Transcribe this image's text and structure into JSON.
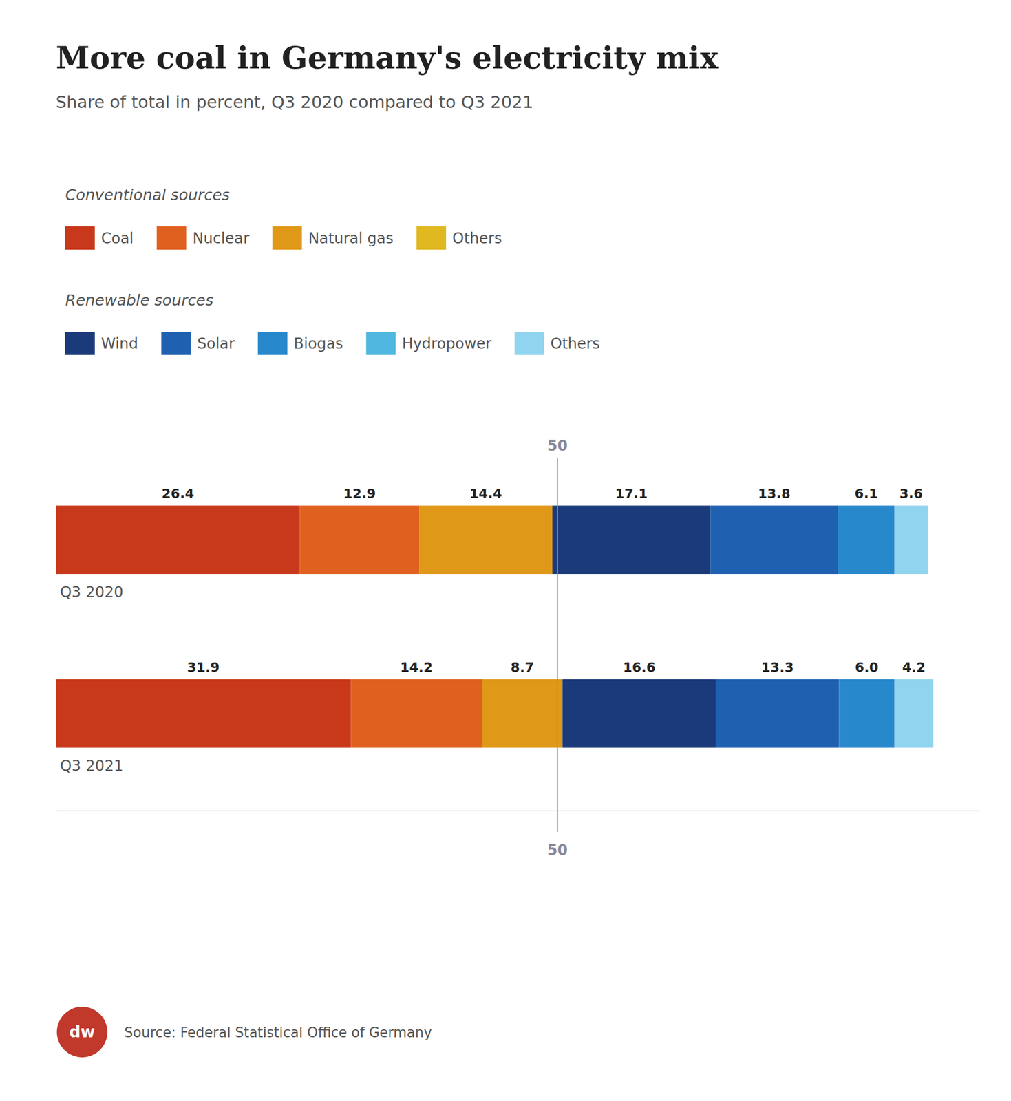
{
  "chart_data": {
    "type": "bar",
    "orientation": "horizontal",
    "stacked": true,
    "data_labels": true,
    "tick_labels": false,
    "grid": false,
    "title": "More coal in Germany's electricity mix",
    "subtitle": "Share of total in percent, Q3 2020 compared to Q3 2021",
    "categories": [
      "Q3 2020",
      "Q3 2021"
    ],
    "series": [
      {
        "name": "Coal",
        "group": "Conventional sources",
        "color": "#c8381a",
        "values": [
          26.4,
          31.9
        ]
      },
      {
        "name": "Nuclear",
        "group": "Conventional sources",
        "color": "#e06020",
        "values": [
          12.9,
          14.2
        ]
      },
      {
        "name": "Natural gas",
        "group": "Conventional sources",
        "color": "#e09818",
        "values": [
          14.4,
          8.7
        ]
      },
      {
        "name": "Others",
        "group": "Conventional sources",
        "color": "#e0b820",
        "values": [
          null,
          null
        ]
      },
      {
        "name": "Wind",
        "group": "Renewable sources",
        "color": "#1a3a7a",
        "values": [
          17.1,
          16.6
        ]
      },
      {
        "name": "Solar",
        "group": "Renewable sources",
        "color": "#2060b0",
        "values": [
          13.8,
          13.3
        ]
      },
      {
        "name": "Biogas",
        "group": "Renewable sources",
        "color": "#2888cc",
        "values": [
          6.1,
          6.0
        ]
      },
      {
        "name": "Hydropower",
        "group": "Renewable sources",
        "color": "#50b8e0",
        "values": [
          null,
          null
        ]
      },
      {
        "name": "Others",
        "group": "Renewable sources",
        "color": "#90d4f0",
        "values": [
          3.6,
          4.2
        ]
      }
    ],
    "xlim": [
      0,
      100
    ],
    "reference_line": {
      "value": 54.25,
      "label": "50"
    },
    "source": "Source: Federal Statistical Office of Germany",
    "logo": {
      "text": "dw",
      "color": "#c0392b"
    }
  }
}
